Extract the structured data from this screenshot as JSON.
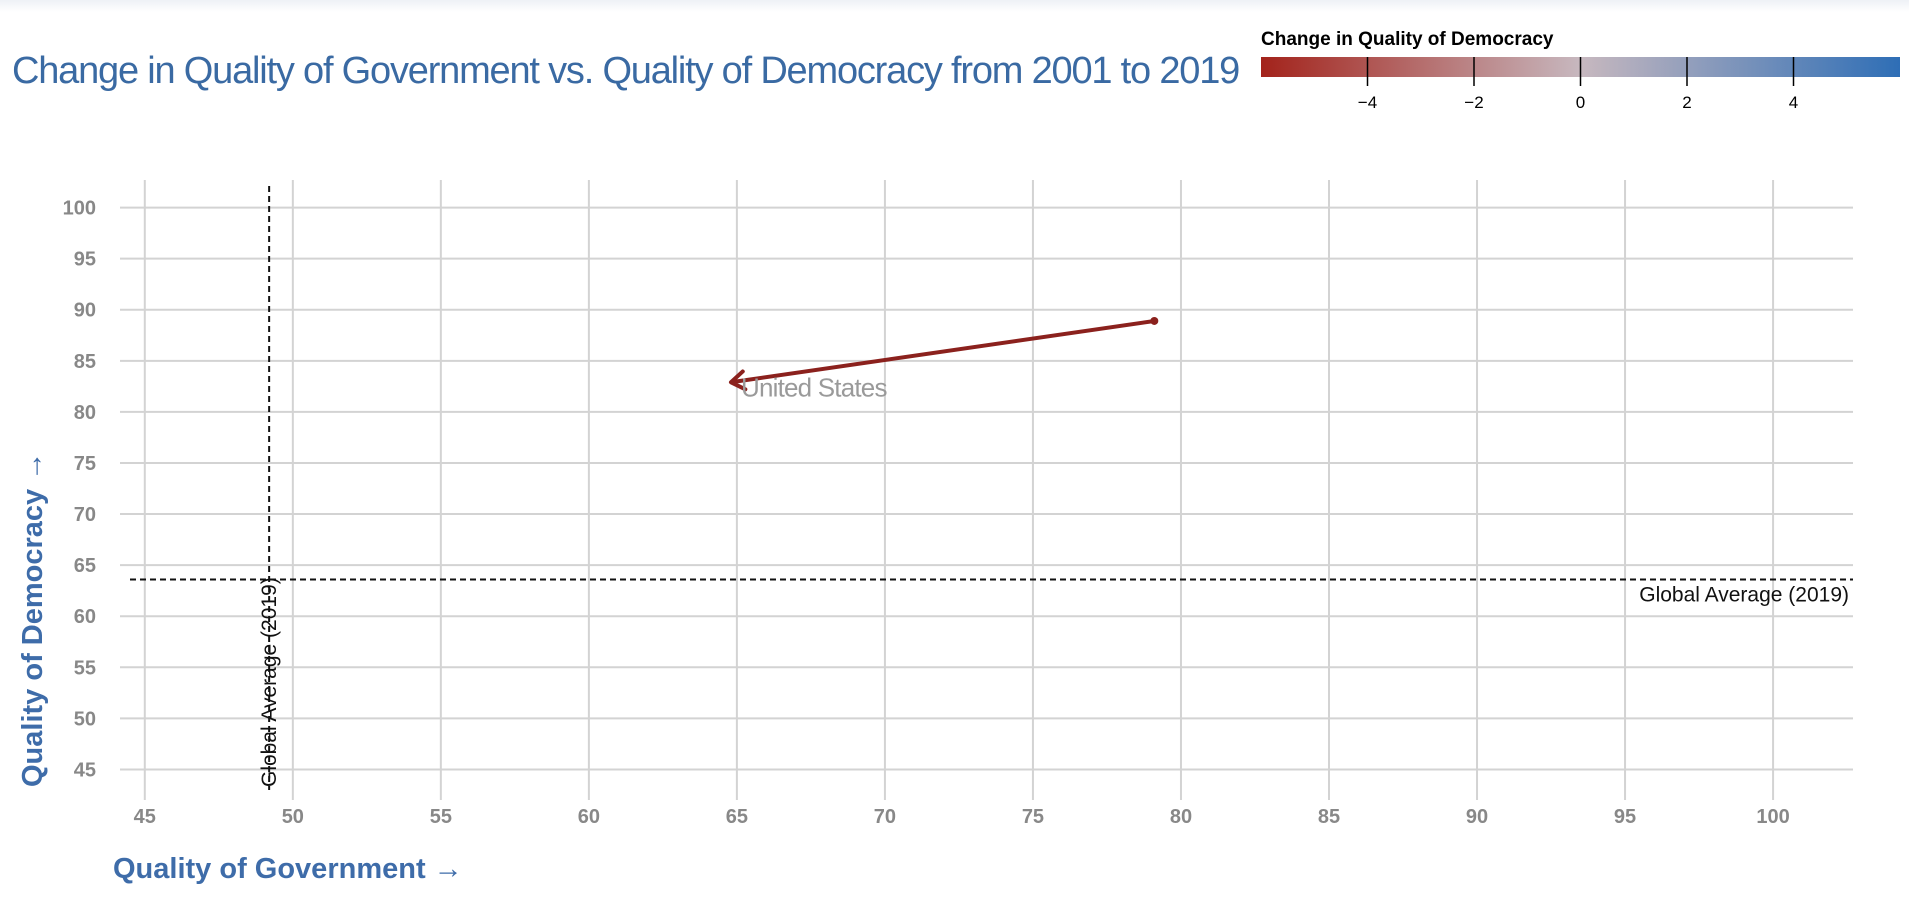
{
  "chart_data": {
    "type": "scatter",
    "title": "Change in Quality of Government vs. Quality of Democracy from 2001 to 2019",
    "xlabel": "Quality of Government →",
    "ylabel": "Quality of Democracy →",
    "xlim": [
      44.5,
      102.7
    ],
    "ylim": [
      42.5,
      102.7
    ],
    "x_ticks": [
      45,
      50,
      55,
      60,
      65,
      70,
      75,
      80,
      85,
      90,
      95,
      100
    ],
    "y_ticks": [
      45,
      50,
      55,
      60,
      65,
      70,
      75,
      80,
      85,
      90,
      95,
      100
    ],
    "grid": true,
    "legend": {
      "title": "Change in Quality of Democracy",
      "position": "top-right",
      "type": "color-scale",
      "domain": [
        -6,
        6
      ],
      "ticks": [
        -4,
        -2,
        0,
        2,
        4
      ],
      "tick_labels": [
        "−4",
        "−2",
        "0",
        "2",
        "4"
      ],
      "colors": [
        "#a3231b",
        "#c7b8bf",
        "#2e6eb6"
      ]
    },
    "reference_lines": [
      {
        "axis": "x",
        "value": 49.2,
        "label": "Global Average (2019)"
      },
      {
        "axis": "y",
        "value": 63.6,
        "label": "Global Average (2019)"
      }
    ],
    "series": [
      {
        "name": "United States",
        "start": {
          "year": 2001,
          "x": 79.1,
          "y": 88.9
        },
        "end": {
          "year": 2019,
          "x": 64.8,
          "y": 82.9
        },
        "change_quality_of_democracy": -6.0,
        "color": "#8b211d"
      }
    ]
  }
}
